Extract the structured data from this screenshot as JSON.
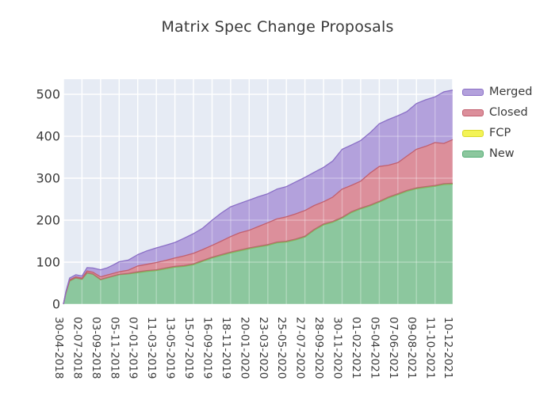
{
  "figure": {
    "title": "Matrix Spec Change Proposals"
  },
  "chart_data": {
    "type": "area",
    "stacked": true,
    "title": "Matrix Spec Change Proposals",
    "grid": true,
    "plot_bg_color": "#e6ebf4",
    "grid_color": "#ffffff",
    "text_color": "#3c3c3c",
    "x_axis": {
      "tick_labels": [
        "30-04-2018",
        "02-07-2018",
        "03-09-2018",
        "05-11-2018",
        "07-01-2019",
        "11-03-2019",
        "13-05-2019",
        "15-07-2019",
        "16-09-2019",
        "18-11-2019",
        "20-01-2020",
        "23-03-2020",
        "25-05-2020",
        "27-07-2020",
        "28-09-2020",
        "30-11-2020",
        "01-02-2021",
        "05-04-2021",
        "07-06-2021",
        "09-08-2021",
        "11-10-2021",
        "10-12-2021"
      ],
      "tick_days": [
        0,
        63,
        126,
        189,
        252,
        315,
        378,
        441,
        504,
        567,
        630,
        693,
        756,
        819,
        882,
        945,
        1008,
        1071,
        1134,
        1197,
        1260,
        1320
      ],
      "total_days": 1320
    },
    "y_axis": {
      "ticks": [
        0,
        100,
        200,
        300,
        400,
        500
      ],
      "range": [
        0,
        536
      ]
    },
    "legend": {
      "position": "outside-upper-right",
      "entries": [
        {
          "label": "Merged",
          "fill": "#b3a1dc",
          "edge": "#8a6fc6"
        },
        {
          "label": "Closed",
          "fill": "#dc8f9b",
          "edge": "#c25f6e"
        },
        {
          "label": "FCP",
          "fill": "#f3f356",
          "edge": "#d9d929"
        },
        {
          "label": "New",
          "fill": "#8cc79e",
          "edge": "#52ad74"
        }
      ]
    },
    "sample_days": [
      0,
      8,
      21,
      42,
      63,
      80,
      100,
      126,
      147,
      168,
      189,
      220,
      252,
      283,
      315,
      346,
      378,
      409,
      441,
      472,
      504,
      535,
      567,
      598,
      630,
      661,
      693,
      724,
      756,
      787,
      819,
      850,
      882,
      913,
      945,
      976,
      1008,
      1039,
      1071,
      1102,
      1134,
      1165,
      1197,
      1228,
      1260,
      1290,
      1320
    ],
    "series": [
      {
        "name": "New",
        "fill": "#8cc79e",
        "line": "#7fb95a",
        "values": [
          0,
          25,
          55,
          62,
          59,
          74,
          71,
          58,
          62,
          66,
          70,
          72,
          75,
          78,
          80,
          84,
          88,
          90,
          94,
          102,
          110,
          116,
          122,
          127,
          132,
          136,
          140,
          146,
          148,
          153,
          160,
          176,
          189,
          195,
          205,
          218,
          227,
          234,
          243,
          253,
          261,
          269,
          275,
          278,
          281,
          285,
          286
        ]
      },
      {
        "name": "FCP",
        "fill": "#f3f356",
        "line": "#b66a6e",
        "values": [
          0,
          1,
          1,
          1,
          1,
          1,
          1,
          1,
          1,
          1,
          1,
          1,
          2,
          2,
          2,
          2,
          2,
          2,
          2,
          2,
          2,
          2,
          2,
          2,
          2,
          2,
          2,
          2,
          2,
          2,
          2,
          2,
          2,
          2,
          2,
          2,
          2,
          2,
          2,
          2,
          2,
          2,
          2,
          2,
          2,
          2,
          2
        ]
      },
      {
        "name": "Closed",
        "fill": "#dc8f9b",
        "line": "#c25f6e",
        "values": [
          0,
          1,
          2,
          2,
          2,
          4,
          4,
          6,
          6,
          6,
          6,
          8,
          14,
          15,
          17,
          18,
          20,
          23,
          25,
          26,
          28,
          32,
          37,
          41,
          42,
          47,
          52,
          55,
          58,
          60,
          61,
          57,
          53,
          58,
          67,
          63,
          64,
          76,
          83,
          76,
          74,
          82,
          92,
          96,
          102,
          96,
          104
        ]
      },
      {
        "name": "Merged",
        "fill": "#b3a1dc",
        "line": "#8a6fc6",
        "values": [
          0,
          2,
          4,
          5,
          5,
          8,
          10,
          17,
          17,
          20,
          24,
          24,
          27,
          32,
          35,
          36,
          37,
          42,
          47,
          51,
          60,
          67,
          71,
          70,
          72,
          71,
          69,
          71,
          72,
          76,
          79,
          79,
          82,
          86,
          95,
          96,
          97,
          96,
          102,
          109,
          112,
          106,
          109,
          111,
          109,
          123,
          118
        ]
      }
    ]
  }
}
